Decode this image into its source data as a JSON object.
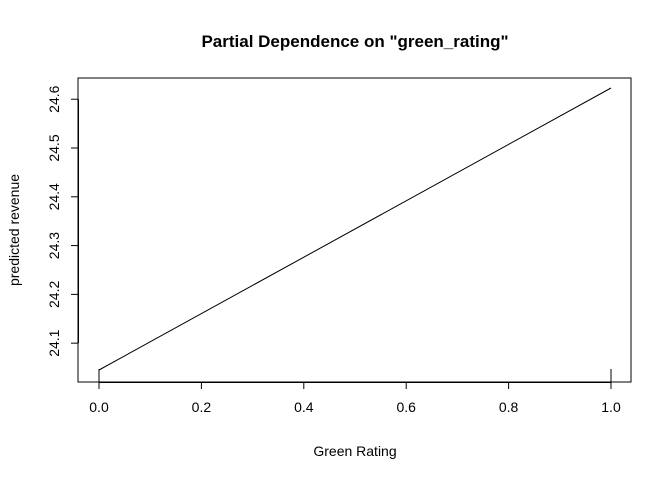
{
  "chart_data": {
    "type": "line",
    "title": "Partial Dependence on \"green_rating\"",
    "xlabel": "Green Rating",
    "ylabel": "predicted revenue",
    "x": [
      0.0,
      1.0
    ],
    "series": [
      {
        "values": [
          24.045,
          24.623
        ]
      }
    ],
    "xlim": [
      0.0,
      1.0
    ],
    "ylim": [
      24.045,
      24.623
    ],
    "x_ticks": [
      0.0,
      0.2,
      0.4,
      0.6,
      0.8,
      1.0
    ],
    "x_tick_labels": [
      "0.0",
      "0.2",
      "0.4",
      "0.6",
      "0.8",
      "1.0"
    ],
    "y_ticks": [
      24.1,
      24.2,
      24.3,
      24.4,
      24.5,
      24.6
    ],
    "y_tick_labels": [
      "24.1",
      "24.2",
      "24.3",
      "24.4",
      "24.5",
      "24.6"
    ],
    "rug_x": [
      0.0,
      1.0
    ],
    "grid": false,
    "legend": "none",
    "colors": {
      "line": "#000000",
      "axes": "#000000",
      "background": "#ffffff"
    }
  }
}
